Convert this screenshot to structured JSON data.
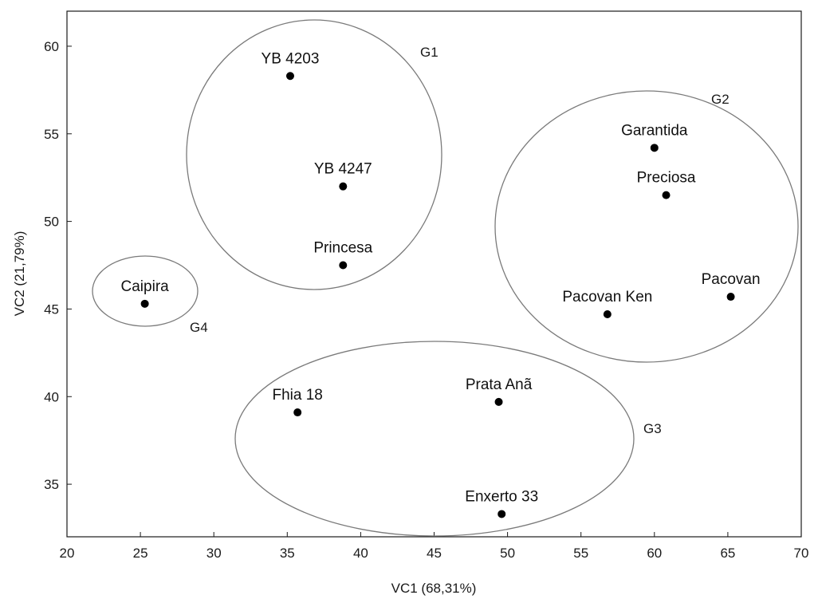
{
  "chart_data": {
    "type": "scatter",
    "title": "",
    "xlabel": "VC1 (68,31%)",
    "ylabel": "VC2 (21,79%)",
    "xlim": [
      20,
      70
    ],
    "ylim": [
      32,
      62
    ],
    "x_ticks": [
      20,
      25,
      30,
      35,
      40,
      45,
      50,
      55,
      60,
      65,
      70
    ],
    "y_ticks": [
      35,
      40,
      45,
      50,
      55,
      60
    ],
    "grid": false,
    "points": [
      {
        "label": "YB 4203",
        "x": 35.2,
        "y": 58.3
      },
      {
        "label": "YB 4247",
        "x": 38.8,
        "y": 52.0
      },
      {
        "label": "Princesa",
        "x": 38.8,
        "y": 47.5
      },
      {
        "label": "Caipira",
        "x": 25.3,
        "y": 45.3
      },
      {
        "label": "Garantida",
        "x": 60.0,
        "y": 54.2
      },
      {
        "label": "Preciosa",
        "x": 60.8,
        "y": 51.5
      },
      {
        "label": "Pacovan",
        "x": 65.2,
        "y": 45.7
      },
      {
        "label": "Pacovan Ken",
        "x": 56.8,
        "y": 44.7
      },
      {
        "label": "Fhia 18",
        "x": 35.7,
        "y": 39.1
      },
      {
        "label": "Prata Anã",
        "x": 49.4,
        "y": 39.7
      },
      {
        "label": "Enxerto 33",
        "x": 49.6,
        "y": 33.3
      }
    ],
    "groups": [
      {
        "name": "G1",
        "members": [
          "YB 4203",
          "YB 4247",
          "Princesa"
        ]
      },
      {
        "name": "G2",
        "members": [
          "Garantida",
          "Preciosa",
          "Pacovan",
          "Pacovan Ken"
        ]
      },
      {
        "name": "G3",
        "members": [
          "Fhia 18",
          "Prata Anã",
          "Enxerto 33"
        ]
      },
      {
        "name": "G4",
        "members": [
          "Caipira"
        ]
      }
    ],
    "colors": {
      "points": "#000000",
      "ellipses": "#7a7a7a",
      "frame": "#1a1a1a"
    }
  }
}
